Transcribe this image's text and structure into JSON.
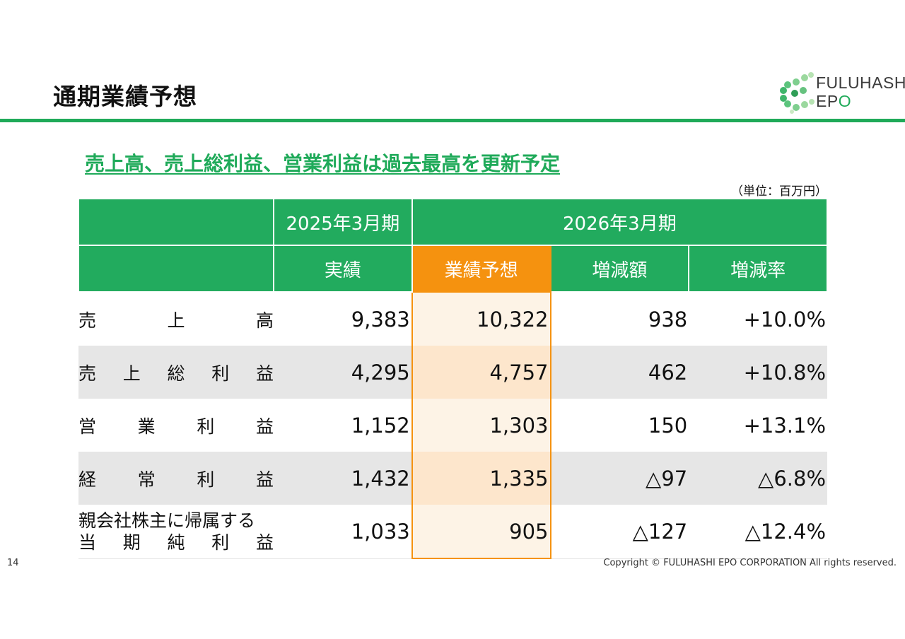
{
  "title": "通期業績予想",
  "logo": {
    "line1": "FULUHASHI",
    "line2_a": "EP",
    "line2_b": "O"
  },
  "subtitle": "売上高、売上総利益、営業利益は過去最高を更新予定",
  "unit": "（単位：百万円）",
  "table": {
    "header": {
      "fy2025": "2025年3月期",
      "fy2026": "2026年3月期",
      "actual": "実績",
      "forecast": "業績予想",
      "change_amount": "増減額",
      "change_rate": "増減率"
    },
    "rows": [
      {
        "label": "売上高",
        "label_spaced": "売　　上　　高",
        "actual": "9,383",
        "forecast": "10,322",
        "change": "938",
        "rate": "+10.0%"
      },
      {
        "label": "売上総利益",
        "label_spaced": "売 上 総 利 益",
        "actual": "4,295",
        "forecast": "4,757",
        "change": "462",
        "rate": "+10.8%"
      },
      {
        "label": "営業利益",
        "label_spaced": "営　業　利　益",
        "actual": "1,152",
        "forecast": "1,303",
        "change": "150",
        "rate": "+13.1%"
      },
      {
        "label": "経常利益",
        "label_spaced": "経　常　利　益",
        "actual": "1,432",
        "forecast": "1,335",
        "change": "△97",
        "rate": "△6.8%"
      },
      {
        "label_line1": "親会社株主に帰属する",
        "label_line2": "当 期 純 利 益",
        "actual": "1,033",
        "forecast": "905",
        "change": "△127",
        "rate": "△12.4%"
      }
    ]
  },
  "page_number": "14",
  "copyright": "Copyright © FULUHASHI EPO CORPORATION All rights reserved.",
  "colors": {
    "green": "#22ab5e",
    "orange": "#f5920f",
    "forecast_bg": "#fdf3e6",
    "stripe": "#e6e6e6"
  }
}
